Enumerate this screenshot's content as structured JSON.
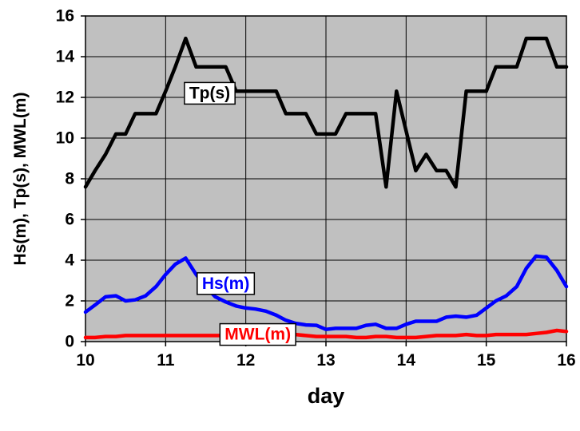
{
  "chart_data": {
    "type": "line",
    "xlabel": "day",
    "ylabel": "Hs(m), Tp(s), MWL(m)",
    "xlim": [
      10,
      16
    ],
    "ylim": [
      0,
      16
    ],
    "xticks": [
      10,
      11,
      12,
      13,
      14,
      15,
      16
    ],
    "yticks": [
      0,
      2,
      4,
      6,
      8,
      10,
      12,
      14,
      16
    ],
    "x_tick_labels": [
      "10",
      "11",
      "12",
      "13",
      "14",
      "15",
      "16"
    ],
    "y_tick_labels": [
      "0",
      "2",
      "4",
      "6",
      "8",
      "10",
      "12",
      "14",
      "16"
    ],
    "grid": true,
    "plot_background": "#c0c0c0",
    "legend": "inline labels on the plot",
    "series": [
      {
        "name": "Tp(s)",
        "color": "#000000",
        "label_box_at": {
          "x": 11.55,
          "y": 12.2
        },
        "points": [
          [
            10.0,
            7.6
          ],
          [
            10.12,
            8.4
          ],
          [
            10.25,
            9.2
          ],
          [
            10.38,
            10.2
          ],
          [
            10.5,
            10.2
          ],
          [
            10.62,
            11.2
          ],
          [
            10.88,
            11.2
          ],
          [
            11.0,
            12.3
          ],
          [
            11.12,
            13.5
          ],
          [
            11.25,
            14.9
          ],
          [
            11.38,
            13.5
          ],
          [
            11.75,
            13.5
          ],
          [
            11.88,
            12.3
          ],
          [
            12.38,
            12.3
          ],
          [
            12.5,
            11.2
          ],
          [
            12.75,
            11.2
          ],
          [
            12.88,
            10.2
          ],
          [
            13.12,
            10.2
          ],
          [
            13.25,
            11.2
          ],
          [
            13.62,
            11.2
          ],
          [
            13.75,
            7.6
          ],
          [
            13.88,
            12.3
          ],
          [
            14.12,
            8.4
          ],
          [
            14.25,
            9.2
          ],
          [
            14.38,
            8.4
          ],
          [
            14.5,
            8.4
          ],
          [
            14.62,
            7.6
          ],
          [
            14.75,
            12.3
          ],
          [
            15.0,
            12.3
          ],
          [
            15.12,
            13.5
          ],
          [
            15.38,
            13.5
          ],
          [
            15.5,
            14.9
          ],
          [
            15.75,
            14.9
          ],
          [
            15.88,
            13.5
          ],
          [
            16.0,
            13.5
          ]
        ]
      },
      {
        "name": "Hs(m)",
        "color": "#0000ff",
        "label_box_at": {
          "x": 11.75,
          "y": 2.85
        },
        "points": [
          [
            10.0,
            1.45
          ],
          [
            10.12,
            1.8
          ],
          [
            10.25,
            2.2
          ],
          [
            10.38,
            2.25
          ],
          [
            10.5,
            2.0
          ],
          [
            10.62,
            2.05
          ],
          [
            10.75,
            2.25
          ],
          [
            10.88,
            2.7
          ],
          [
            11.0,
            3.3
          ],
          [
            11.12,
            3.8
          ],
          [
            11.25,
            4.1
          ],
          [
            11.38,
            3.3
          ],
          [
            11.5,
            2.7
          ],
          [
            11.62,
            2.2
          ],
          [
            11.75,
            1.95
          ],
          [
            11.88,
            1.75
          ],
          [
            12.0,
            1.65
          ],
          [
            12.12,
            1.6
          ],
          [
            12.25,
            1.5
          ],
          [
            12.38,
            1.3
          ],
          [
            12.5,
            1.05
          ],
          [
            12.62,
            0.9
          ],
          [
            12.75,
            0.82
          ],
          [
            12.88,
            0.8
          ],
          [
            13.0,
            0.6
          ],
          [
            13.12,
            0.65
          ],
          [
            13.25,
            0.65
          ],
          [
            13.38,
            0.65
          ],
          [
            13.5,
            0.8
          ],
          [
            13.62,
            0.85
          ],
          [
            13.75,
            0.65
          ],
          [
            13.88,
            0.65
          ],
          [
            14.0,
            0.85
          ],
          [
            14.12,
            1.0
          ],
          [
            14.25,
            1.0
          ],
          [
            14.38,
            1.0
          ],
          [
            14.5,
            1.2
          ],
          [
            14.62,
            1.25
          ],
          [
            14.75,
            1.2
          ],
          [
            14.88,
            1.3
          ],
          [
            15.0,
            1.65
          ],
          [
            15.12,
            2.0
          ],
          [
            15.25,
            2.25
          ],
          [
            15.38,
            2.7
          ],
          [
            15.5,
            3.6
          ],
          [
            15.62,
            4.2
          ],
          [
            15.75,
            4.15
          ],
          [
            15.88,
            3.5
          ],
          [
            16.0,
            2.7
          ]
        ]
      },
      {
        "name": "MWL(m)",
        "color": "#ff0000",
        "label_box_at": {
          "x": 12.15,
          "y": 0.35
        },
        "points": [
          [
            10.0,
            0.2
          ],
          [
            10.12,
            0.2
          ],
          [
            10.25,
            0.25
          ],
          [
            10.38,
            0.25
          ],
          [
            10.5,
            0.3
          ],
          [
            10.75,
            0.3
          ],
          [
            11.0,
            0.3
          ],
          [
            11.25,
            0.3
          ],
          [
            11.5,
            0.3
          ],
          [
            11.75,
            0.3
          ],
          [
            12.0,
            0.3
          ],
          [
            12.25,
            0.3
          ],
          [
            12.5,
            0.35
          ],
          [
            12.62,
            0.35
          ],
          [
            12.75,
            0.3
          ],
          [
            12.88,
            0.25
          ],
          [
            13.0,
            0.25
          ],
          [
            13.25,
            0.25
          ],
          [
            13.38,
            0.2
          ],
          [
            13.5,
            0.2
          ],
          [
            13.62,
            0.25
          ],
          [
            13.75,
            0.25
          ],
          [
            13.88,
            0.2
          ],
          [
            14.0,
            0.2
          ],
          [
            14.12,
            0.2
          ],
          [
            14.25,
            0.25
          ],
          [
            14.38,
            0.3
          ],
          [
            14.5,
            0.3
          ],
          [
            14.62,
            0.3
          ],
          [
            14.75,
            0.35
          ],
          [
            14.88,
            0.3
          ],
          [
            15.0,
            0.3
          ],
          [
            15.12,
            0.35
          ],
          [
            15.25,
            0.35
          ],
          [
            15.5,
            0.35
          ],
          [
            15.62,
            0.4
          ],
          [
            15.75,
            0.45
          ],
          [
            15.88,
            0.55
          ],
          [
            16.0,
            0.5
          ]
        ]
      }
    ]
  }
}
